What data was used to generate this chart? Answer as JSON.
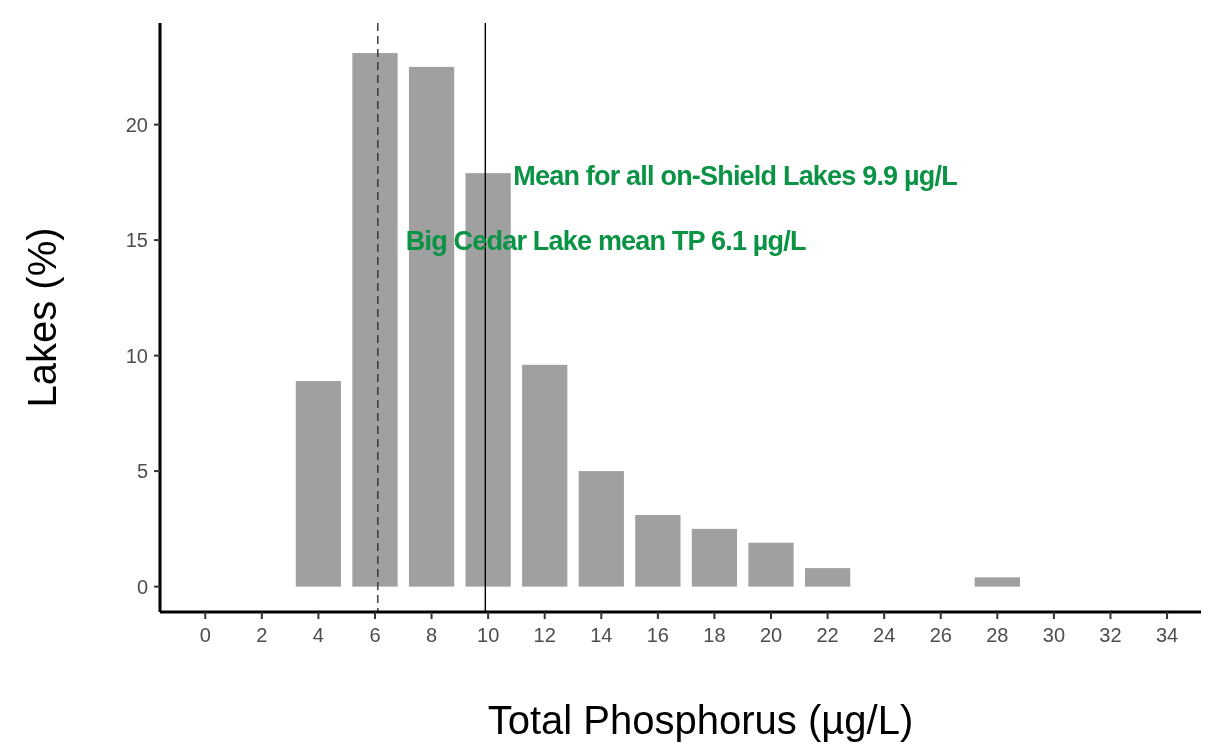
{
  "chart_data": {
    "type": "histogram",
    "xlabel": "Total Phosphorus (µg/L)",
    "ylabel": "Lakes (%)",
    "bins": [
      3,
      5,
      7,
      9,
      11,
      13,
      15,
      17,
      19,
      21,
      23,
      25,
      27,
      29
    ],
    "values": [
      8.9,
      23.1,
      22.5,
      17.9,
      9.6,
      5.0,
      3.1,
      2.5,
      1.9,
      0.8,
      0,
      0,
      0.4
    ],
    "color": "#a0a0a0",
    "xlim": [
      -1.6,
      35.2
    ],
    "xticks": [
      0,
      2,
      4,
      6,
      8,
      10,
      12,
      14,
      16,
      18,
      20,
      22,
      24,
      26,
      28,
      30,
      32,
      34
    ],
    "ylim": [
      -1.1,
      24.4
    ],
    "yticks": [
      0,
      5,
      10,
      15,
      20
    ],
    "ref_lines": [
      {
        "axis": "x",
        "value": 6.1,
        "label": "Big Cedar Lake mean TP 6.1 µg/L",
        "color": "#333333",
        "line_style": "dashed"
      },
      {
        "axis": "x",
        "value": 9.9,
        "label": "Mean for all on-Shield Lakes 9.9 µg/L",
        "color": "#000000",
        "line_style": "solid"
      }
    ],
    "grid": false
  }
}
